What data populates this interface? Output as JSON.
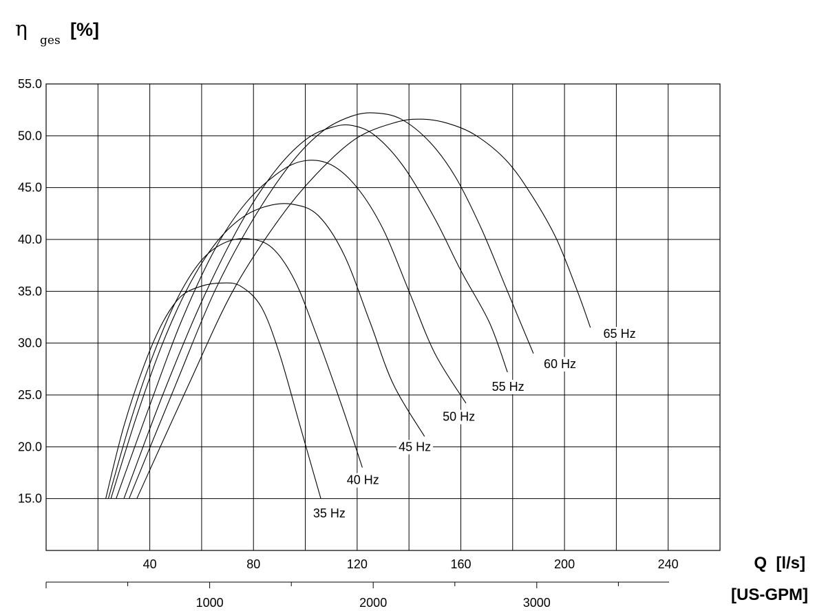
{
  "chart_data": {
    "type": "line",
    "y_title": {
      "symbol": "η",
      "subscript": "ges",
      "unit": "[%]"
    },
    "x_title": "Q  [l/s]",
    "x2_title": "[US-GPM]",
    "xlim": [
      0,
      260
    ],
    "ylim": [
      10,
      55
    ],
    "grid": true,
    "x_ticks": [
      40,
      80,
      120,
      160,
      200,
      240
    ],
    "x_grid": [
      20,
      40,
      60,
      80,
      100,
      120,
      140,
      160,
      180,
      200,
      220,
      240,
      260
    ],
    "y_ticks": [
      "15.0",
      "20.0",
      "25.0",
      "30.0",
      "35.0",
      "40.0",
      "45.0",
      "50.0",
      "55.0"
    ],
    "x2_ticks": [
      {
        "label": "1000",
        "q": 63.1
      },
      {
        "label": "2000",
        "q": 126.2
      },
      {
        "label": "3000",
        "q": 189.3
      }
    ],
    "x2_minor": [
      31.5,
      94.6,
      157.7,
      220.8
    ],
    "series": [
      {
        "name": "35 Hz",
        "label_at": [
          103,
          13.2
        ],
        "points": [
          [
            23,
            15
          ],
          [
            30,
            22
          ],
          [
            38,
            28
          ],
          [
            45,
            32
          ],
          [
            52,
            34.5
          ],
          [
            60,
            35.5
          ],
          [
            68,
            35.8
          ],
          [
            75,
            35.5
          ],
          [
            83,
            33.5
          ],
          [
            90,
            29
          ],
          [
            98,
            22
          ],
          [
            106,
            15
          ]
        ]
      },
      {
        "name": "40 Hz",
        "label_at": [
          116,
          16.4
        ],
        "points": [
          [
            24,
            15
          ],
          [
            32,
            22
          ],
          [
            40,
            28
          ],
          [
            50,
            34
          ],
          [
            60,
            38
          ],
          [
            70,
            39.8
          ],
          [
            80,
            40
          ],
          [
            88,
            39
          ],
          [
            96,
            36
          ],
          [
            104,
            31
          ],
          [
            114,
            24
          ],
          [
            122,
            18
          ]
        ]
      },
      {
        "name": "45 Hz",
        "label_at": [
          136,
          19.6
        ],
        "points": [
          [
            25,
            15
          ],
          [
            35,
            23
          ],
          [
            45,
            30
          ],
          [
            55,
            35.5
          ],
          [
            65,
            39.5
          ],
          [
            75,
            42
          ],
          [
            85,
            43.2
          ],
          [
            95,
            43.4
          ],
          [
            105,
            42.3
          ],
          [
            115,
            38.5
          ],
          [
            125,
            32
          ],
          [
            134,
            26
          ],
          [
            146,
            21
          ]
        ]
      },
      {
        "name": "50 Hz",
        "label_at": [
          153,
          22.5
        ],
        "points": [
          [
            27,
            15
          ],
          [
            40,
            24
          ],
          [
            52,
            32
          ],
          [
            65,
            39
          ],
          [
            77,
            43.5
          ],
          [
            90,
            46.5
          ],
          [
            100,
            47.6
          ],
          [
            110,
            47.2
          ],
          [
            120,
            45
          ],
          [
            130,
            41
          ],
          [
            140,
            35
          ],
          [
            150,
            29
          ],
          [
            162,
            24.2
          ]
        ]
      },
      {
        "name": "55 Hz",
        "label_at": [
          172,
          25.4
        ],
        "points": [
          [
            30,
            15
          ],
          [
            45,
            25
          ],
          [
            60,
            34
          ],
          [
            75,
            41.5
          ],
          [
            88,
            46.5
          ],
          [
            100,
            49.6
          ],
          [
            110,
            50.8
          ],
          [
            118,
            51
          ],
          [
            127,
            50
          ],
          [
            138,
            47
          ],
          [
            150,
            42
          ],
          [
            160,
            37
          ],
          [
            171,
            32
          ],
          [
            178,
            27.2
          ]
        ]
      },
      {
        "name": "60 Hz",
        "label_at": [
          192,
          27.6
        ],
        "points": [
          [
            32,
            15
          ],
          [
            50,
            26
          ],
          [
            65,
            35
          ],
          [
            80,
            42
          ],
          [
            95,
            47.5
          ],
          [
            107,
            50.5
          ],
          [
            118,
            51.9
          ],
          [
            127,
            52.2
          ],
          [
            137,
            51.6
          ],
          [
            148,
            49.4
          ],
          [
            158,
            46
          ],
          [
            168,
            41
          ],
          [
            178,
            35
          ],
          [
            188,
            29
          ]
        ]
      },
      {
        "name": "65 Hz",
        "label_at": [
          215,
          30.5
        ],
        "points": [
          [
            35,
            15
          ],
          [
            55,
            26
          ],
          [
            72,
            35
          ],
          [
            90,
            42
          ],
          [
            105,
            46.5
          ],
          [
            120,
            49.8
          ],
          [
            135,
            51.3
          ],
          [
            145,
            51.6
          ],
          [
            155,
            51.2
          ],
          [
            166,
            50
          ],
          [
            178,
            47.5
          ],
          [
            188,
            44
          ],
          [
            197,
            40
          ],
          [
            205,
            35
          ],
          [
            210,
            31.5
          ]
        ]
      }
    ]
  }
}
